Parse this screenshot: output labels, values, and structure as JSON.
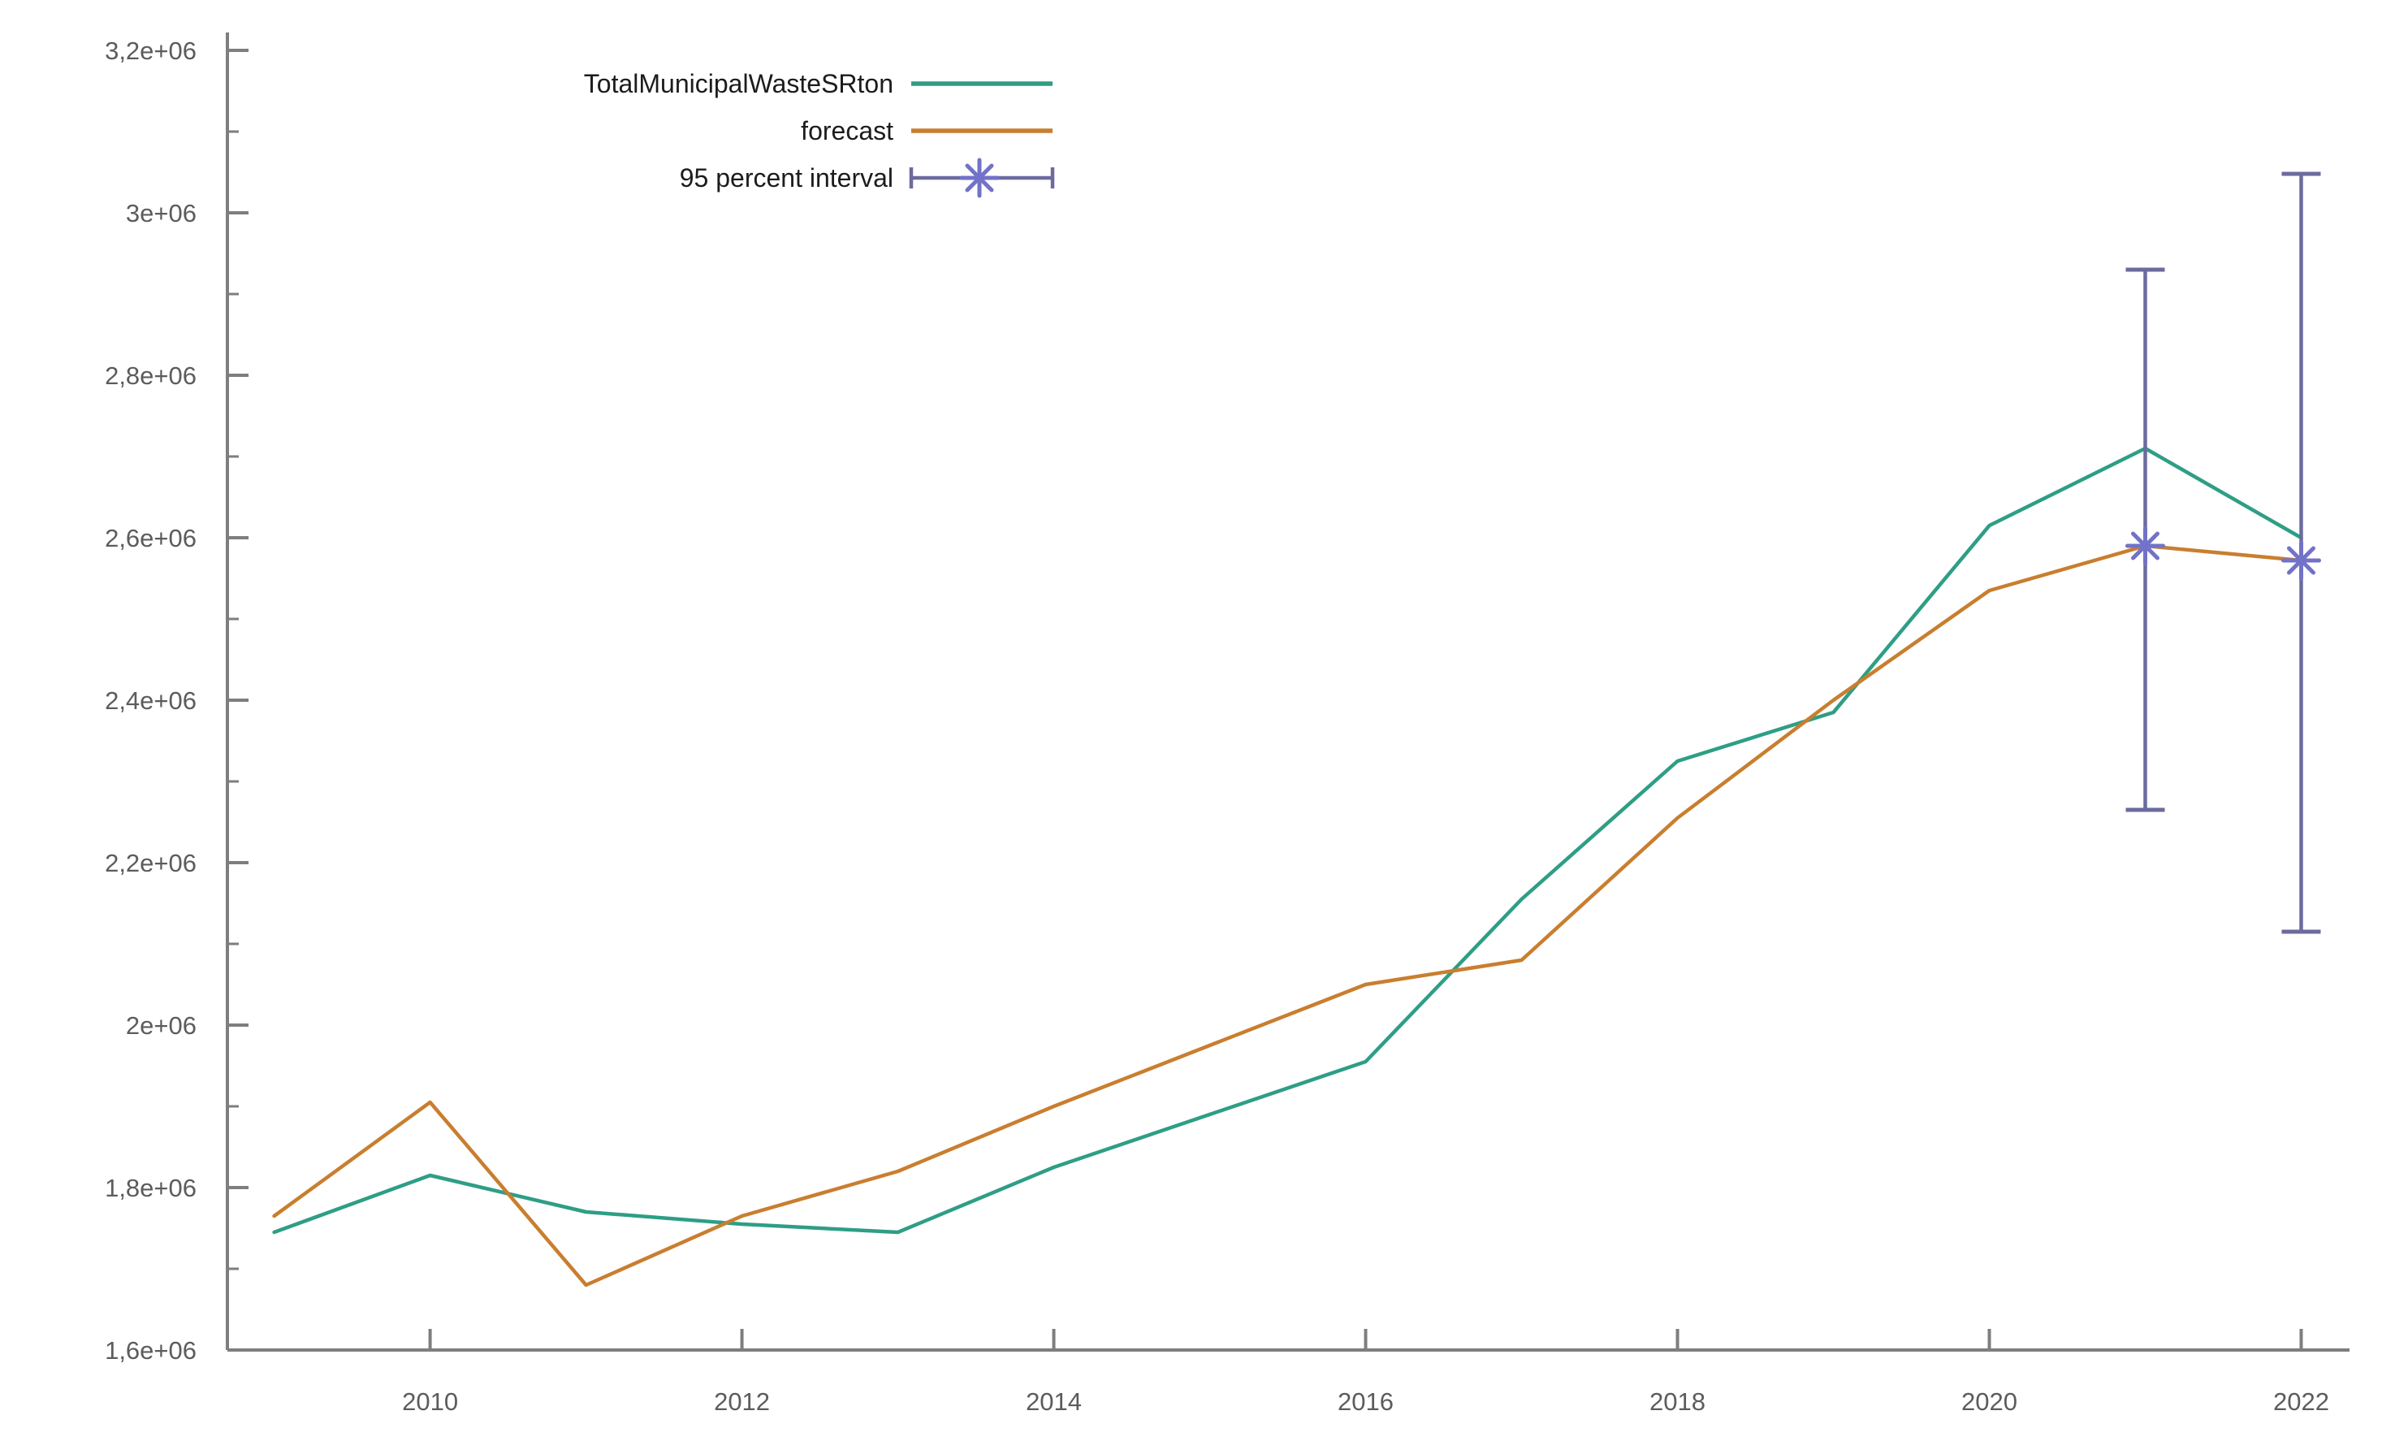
{
  "figure": {
    "background": "#ffffff",
    "axis_color": "#7e7e7e",
    "tick_label_color": "#5c5c5c",
    "legend_text_color": "#1c1c1c"
  },
  "chart_data": {
    "type": "line",
    "title": "",
    "xlabel": "",
    "ylabel": "",
    "grid": false,
    "x": [
      2009,
      2010,
      2011,
      2012,
      2013,
      2014,
      2015,
      2016,
      2017,
      2018,
      2019,
      2020,
      2021,
      2022
    ],
    "series": [
      {
        "name": "TotalMunicipalWasteSRton",
        "color": "#2e9e85",
        "values": [
          1745000,
          1815000,
          1770000,
          1755000,
          1745000,
          1825000,
          1890000,
          1955000,
          2155000,
          2325000,
          2385000,
          2615000,
          2710000,
          2600000
        ]
      },
      {
        "name": "forecast",
        "color": "#c97e2f",
        "values": [
          1765000,
          1905000,
          1680000,
          1765000,
          1820000,
          1900000,
          1975000,
          2050000,
          2080000,
          2255000,
          2400000,
          2535000,
          2590000,
          2572000
        ]
      }
    ],
    "error_bars": {
      "name": "95 percent interval",
      "line_color": "#6b6b9d",
      "marker_color": "#7272c8",
      "points": [
        {
          "x": 2021,
          "center": 2590000,
          "low": 2265000,
          "high": 2930000
        },
        {
          "x": 2022,
          "center": 2572000,
          "low": 2115000,
          "high": 3048000
        }
      ]
    },
    "legend": {
      "position": "top-left",
      "entries": [
        {
          "label": "TotalMunicipalWasteSRton",
          "type": "line",
          "series": 0
        },
        {
          "label": "forecast",
          "type": "line",
          "series": 1
        },
        {
          "label": "95 percent interval",
          "type": "errorbar"
        }
      ]
    },
    "xlim": [
      2008.7,
      2022.31
    ],
    "ylim": [
      1600000,
      3222000
    ],
    "x_ticks": {
      "values": [
        2010,
        2012,
        2014,
        2016,
        2018,
        2020,
        2022
      ],
      "labels": [
        "2010",
        "2012",
        "2014",
        "2016",
        "2018",
        "2020",
        "2022"
      ]
    },
    "y_ticks": {
      "values": [
        1600000,
        1800000,
        2000000,
        2200000,
        2400000,
        2600000,
        2800000,
        3000000,
        3200000
      ],
      "labels": [
        "1,6e+06",
        "1,8e+06",
        "2e+06",
        "2,2e+06",
        "2,4e+06",
        "2,6e+06",
        "2,8e+06",
        "3e+06",
        "3,2e+06"
      ]
    },
    "y_minor_ticks": [
      1700000,
      1900000,
      2100000,
      2300000,
      2500000,
      2700000,
      2900000,
      3100000
    ]
  }
}
